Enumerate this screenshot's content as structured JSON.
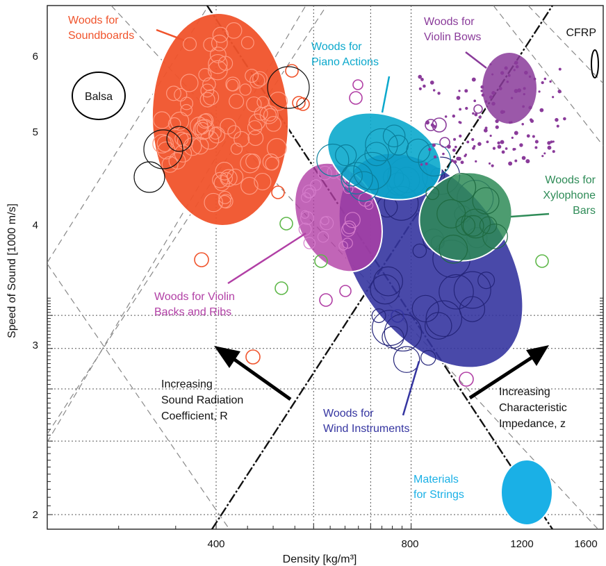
{
  "chart_data": {
    "type": "scatter",
    "title": "",
    "xlabel": "Density [kg/m³]",
    "ylabel": "Speed of Sound [1000 m/s]",
    "x_scale": "log",
    "y_scale": "log",
    "xlim": [
      190,
      1650
    ],
    "ylim": [
      1.95,
      6.6
    ],
    "x_ticks": [
      {
        "value": 400,
        "label": "400"
      },
      {
        "value": 800,
        "label": "800"
      },
      {
        "value": 1200,
        "label": "1200"
      },
      {
        "value": 1600,
        "label": "1600"
      }
    ],
    "y_ticks": [
      {
        "value": 2,
        "label": "2"
      },
      {
        "value": 3,
        "label": "3"
      },
      {
        "value": 4,
        "label": "4"
      },
      {
        "value": 5,
        "label": "5"
      },
      {
        "value": 6,
        "label": "6"
      }
    ],
    "grid": "dotted at labeled ticks",
    "regions": [
      {
        "name": "Woods for Soundboards",
        "color": "#f0532b",
        "center": [
          430,
          4.9
        ],
        "label": "Woods for\nSoundboards"
      },
      {
        "name": "Woods for Piano Actions",
        "color": "#0aa8cc",
        "center": [
          780,
          4.75
        ],
        "label": "Woods for\nPiano Actions"
      },
      {
        "name": "Woods for Violin Bows",
        "color": "#8a3b9a",
        "center": [
          1150,
          5.6
        ],
        "label": "Woods for\nViolin Bows"
      },
      {
        "name": "Woods for Xylophone Bars",
        "color": "#2e8b57",
        "center": [
          1000,
          4.05
        ],
        "label": "Woods for\nXylophone\nBars"
      },
      {
        "name": "Woods for Violin Backs and Ribs",
        "color": "#b13fa5",
        "center": [
          640,
          4.0
        ],
        "label": "Woods for Violin\nBacks and Ribs"
      },
      {
        "name": "Woods for Wind Instruments",
        "color": "#3535a0",
        "center": [
          930,
          3.7
        ],
        "label": "Woods for\nWind Instruments"
      },
      {
        "name": "Materials for Strings",
        "color": "#1ab0e6",
        "center": [
          1250,
          2.12
        ],
        "label": "Materials\nfor Strings"
      },
      {
        "name": "Balsa",
        "color": "#000000",
        "center": [
          235,
          5.75
        ],
        "label": "Balsa"
      },
      {
        "name": "CFRP",
        "color": "#000000",
        "center": [
          1610,
          5.9
        ],
        "label": "CFRP"
      }
    ],
    "annotations": [
      {
        "text": "Increasing\nSound Radiation\nCoefficient, R"
      },
      {
        "text": "Increasing\nCharacteristic\nImpedance, z"
      }
    ],
    "colors": {
      "soundboards": "#f0532b",
      "piano": "#0aa8cc",
      "bows": "#8a3b9a",
      "xylophone": "#2e8b57",
      "violin_backs": "#b13fa5",
      "wind": "#3535a0",
      "strings": "#1ab0e6",
      "green_points": "#5fb84a"
    }
  }
}
